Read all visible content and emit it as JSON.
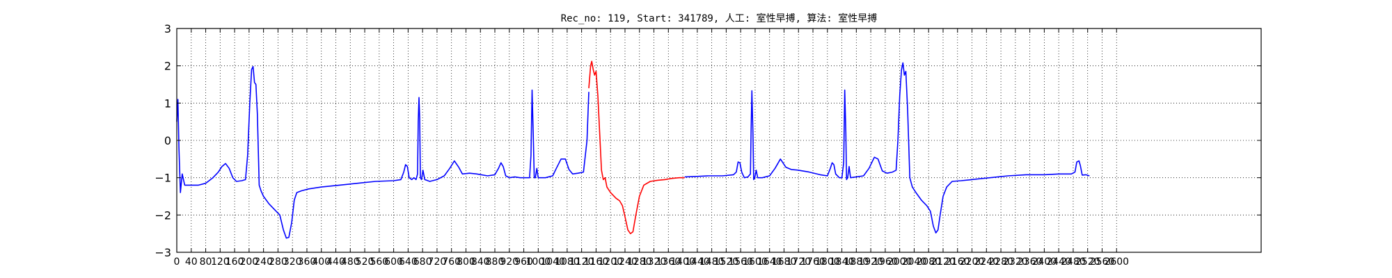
{
  "chart_data": {
    "type": "line",
    "title": "Rec_no: 119, Start: 341789, 人工: 室性早搏, 算法: 室性早搏",
    "xlabel": "",
    "ylabel": "",
    "xlim": [
      0,
      3000
    ],
    "ylim": [
      -3,
      3
    ],
    "grid": true,
    "grid_style": "dotted",
    "yticks": [
      -3,
      -2,
      -1,
      0,
      1,
      2,
      3
    ],
    "ytick_labels": [
      "−3",
      "−2",
      "−1",
      "0",
      "1",
      "2",
      "3"
    ],
    "xticks": [
      0,
      40,
      80,
      120,
      160,
      200,
      240,
      280,
      320,
      360,
      400,
      440,
      480,
      520,
      560,
      600,
      640,
      680,
      720,
      760,
      800,
      840,
      880,
      920,
      960,
      1000,
      1040,
      1080,
      1120,
      1160,
      1200,
      1240,
      1280,
      1320,
      1360,
      1400,
      1440,
      1480,
      1520,
      1560,
      1600,
      1640,
      1680,
      1720,
      1760,
      1800,
      1840,
      1880,
      1920,
      1960,
      2000,
      2040,
      2080,
      2120,
      2160,
      2200,
      2240,
      2280,
      2320,
      2360,
      2400,
      2440,
      2480,
      2520,
      2560,
      2600
    ],
    "series": [
      {
        "color": "#0000ff",
        "points": [
          [
            0,
            0.5
          ],
          [
            3,
            1.1
          ],
          [
            6,
            -0.2
          ],
          [
            10,
            -1.4
          ],
          [
            15,
            -0.9
          ],
          [
            22,
            -1.2
          ],
          [
            40,
            -1.2
          ],
          [
            60,
            -1.2
          ],
          [
            80,
            -1.15
          ],
          [
            100,
            -1.0
          ],
          [
            115,
            -0.85
          ],
          [
            125,
            -0.7
          ],
          [
            135,
            -0.62
          ],
          [
            145,
            -0.75
          ],
          [
            155,
            -1.0
          ],
          [
            165,
            -1.1
          ],
          [
            180,
            -1.08
          ],
          [
            190,
            -1.05
          ],
          [
            196,
            -0.4
          ],
          [
            202,
            1.0
          ],
          [
            207,
            1.9
          ],
          [
            211,
            1.98
          ],
          [
            215,
            1.55
          ],
          [
            219,
            1.5
          ],
          [
            223,
            0.7
          ],
          [
            228,
            -1.2
          ],
          [
            233,
            -1.35
          ],
          [
            240,
            -1.5
          ],
          [
            255,
            -1.7
          ],
          [
            270,
            -1.85
          ],
          [
            285,
            -2.0
          ],
          [
            295,
            -2.4
          ],
          [
            303,
            -2.62
          ],
          [
            310,
            -2.6
          ],
          [
            318,
            -2.2
          ],
          [
            325,
            -1.6
          ],
          [
            332,
            -1.4
          ],
          [
            345,
            -1.35
          ],
          [
            365,
            -1.3
          ],
          [
            400,
            -1.25
          ],
          [
            450,
            -1.2
          ],
          [
            500,
            -1.15
          ],
          [
            550,
            -1.1
          ],
          [
            600,
            -1.08
          ],
          [
            620,
            -1.05
          ],
          [
            628,
            -0.85
          ],
          [
            633,
            -0.65
          ],
          [
            638,
            -0.7
          ],
          [
            643,
            -1.0
          ],
          [
            650,
            -1.05
          ],
          [
            656,
            -1.0
          ],
          [
            662,
            -1.05
          ],
          [
            666,
            -0.9
          ],
          [
            668,
            0.5
          ],
          [
            670,
            1.15
          ],
          [
            672,
            0.6
          ],
          [
            674,
            -1.0
          ],
          [
            677,
            -1.05
          ],
          [
            681,
            -0.8
          ],
          [
            686,
            -1.05
          ],
          [
            700,
            -1.1
          ],
          [
            720,
            -1.05
          ],
          [
            740,
            -0.95
          ],
          [
            755,
            -0.75
          ],
          [
            768,
            -0.55
          ],
          [
            780,
            -0.72
          ],
          [
            790,
            -0.9
          ],
          [
            810,
            -0.88
          ],
          [
            830,
            -0.9
          ],
          [
            860,
            -0.95
          ],
          [
            880,
            -0.92
          ],
          [
            890,
            -0.75
          ],
          [
            897,
            -0.6
          ],
          [
            903,
            -0.7
          ],
          [
            910,
            -0.95
          ],
          [
            920,
            -1.0
          ],
          [
            935,
            -0.98
          ],
          [
            950,
            -1.0
          ],
          [
            976,
            -1.0
          ],
          [
            980,
            -0.4
          ],
          [
            983,
            1.35
          ],
          [
            986,
            0.2
          ],
          [
            989,
            -1.0
          ],
          [
            992,
            -1.0
          ],
          [
            996,
            -0.75
          ],
          [
            1000,
            -1.0
          ],
          [
            1020,
            -1.0
          ],
          [
            1040,
            -0.95
          ],
          [
            1050,
            -0.75
          ],
          [
            1063,
            -0.5
          ],
          [
            1075,
            -0.5
          ],
          [
            1085,
            -0.78
          ],
          [
            1095,
            -0.9
          ],
          [
            1110,
            -0.88
          ],
          [
            1125,
            -0.85
          ],
          [
            1135,
            0.0
          ],
          [
            1140,
            1.3
          ]
        ]
      },
      {
        "color": "#ff0000",
        "points": [
          [
            1140,
            1.4
          ],
          [
            1145,
            2.0
          ],
          [
            1148,
            2.12
          ],
          [
            1152,
            1.9
          ],
          [
            1156,
            1.75
          ],
          [
            1160,
            1.85
          ],
          [
            1165,
            1.2
          ],
          [
            1170,
            0.2
          ],
          [
            1175,
            -0.8
          ],
          [
            1180,
            -1.05
          ],
          [
            1185,
            -1.0
          ],
          [
            1190,
            -1.25
          ],
          [
            1200,
            -1.4
          ],
          [
            1215,
            -1.55
          ],
          [
            1225,
            -1.62
          ],
          [
            1233,
            -1.75
          ],
          [
            1240,
            -2.05
          ],
          [
            1248,
            -2.4
          ],
          [
            1255,
            -2.5
          ],
          [
            1262,
            -2.45
          ],
          [
            1270,
            -2.0
          ],
          [
            1280,
            -1.5
          ],
          [
            1292,
            -1.2
          ],
          [
            1310,
            -1.1
          ],
          [
            1330,
            -1.07
          ],
          [
            1350,
            -1.05
          ],
          [
            1370,
            -1.02
          ],
          [
            1390,
            -1.0
          ],
          [
            1405,
            -1.0
          ]
        ]
      },
      {
        "color": "#0000ff",
        "points": [
          [
            1405,
            -0.98
          ],
          [
            1430,
            -0.97
          ],
          [
            1470,
            -0.95
          ],
          [
            1510,
            -0.95
          ],
          [
            1540,
            -0.92
          ],
          [
            1548,
            -0.85
          ],
          [
            1553,
            -0.58
          ],
          [
            1558,
            -0.6
          ],
          [
            1563,
            -0.85
          ],
          [
            1570,
            -1.0
          ],
          [
            1580,
            -0.98
          ],
          [
            1587,
            -0.9
          ],
          [
            1589,
            0.3
          ],
          [
            1591,
            1.33
          ],
          [
            1594,
            0.2
          ],
          [
            1596,
            -1.05
          ],
          [
            1599,
            -1.0
          ],
          [
            1603,
            -0.8
          ],
          [
            1607,
            -1.0
          ],
          [
            1620,
            -1.0
          ],
          [
            1640,
            -0.95
          ],
          [
            1655,
            -0.75
          ],
          [
            1670,
            -0.5
          ],
          [
            1685,
            -0.72
          ],
          [
            1700,
            -0.78
          ],
          [
            1720,
            -0.8
          ],
          [
            1750,
            -0.85
          ],
          [
            1780,
            -0.92
          ],
          [
            1800,
            -0.95
          ],
          [
            1808,
            -0.75
          ],
          [
            1813,
            -0.6
          ],
          [
            1818,
            -0.65
          ],
          [
            1823,
            -0.9
          ],
          [
            1833,
            -1.0
          ],
          [
            1840,
            -1.0
          ],
          [
            1845,
            -0.6
          ],
          [
            1848,
            1.35
          ],
          [
            1851,
            0.2
          ],
          [
            1853,
            -1.05
          ],
          [
            1856,
            -1.0
          ],
          [
            1860,
            -0.7
          ],
          [
            1864,
            -1.0
          ],
          [
            1880,
            -0.98
          ],
          [
            1900,
            -0.95
          ],
          [
            1915,
            -0.75
          ],
          [
            1930,
            -0.45
          ],
          [
            1940,
            -0.5
          ],
          [
            1952,
            -0.82
          ],
          [
            1965,
            -0.88
          ],
          [
            1980,
            -0.85
          ],
          [
            1990,
            -0.8
          ],
          [
            1995,
            0.0
          ],
          [
            2000,
            1.2
          ],
          [
            2005,
            1.9
          ],
          [
            2009,
            2.08
          ],
          [
            2013,
            1.75
          ],
          [
            2017,
            1.85
          ],
          [
            2022,
            0.8
          ],
          [
            2028,
            -1.0
          ],
          [
            2035,
            -1.25
          ],
          [
            2045,
            -1.4
          ],
          [
            2060,
            -1.6
          ],
          [
            2075,
            -1.75
          ],
          [
            2085,
            -1.9
          ],
          [
            2093,
            -2.3
          ],
          [
            2100,
            -2.48
          ],
          [
            2106,
            -2.4
          ],
          [
            2112,
            -2.0
          ],
          [
            2120,
            -1.5
          ],
          [
            2130,
            -1.25
          ],
          [
            2145,
            -1.1
          ],
          [
            2170,
            -1.08
          ],
          [
            2200,
            -1.05
          ],
          [
            2250,
            -1.0
          ],
          [
            2300,
            -0.95
          ],
          [
            2350,
            -0.92
          ],
          [
            2400,
            -0.92
          ],
          [
            2440,
            -0.9
          ],
          [
            2475,
            -0.9
          ],
          [
            2485,
            -0.85
          ],
          [
            2490,
            -0.58
          ],
          [
            2496,
            -0.55
          ],
          [
            2500,
            -0.68
          ],
          [
            2505,
            -0.93
          ],
          [
            2515,
            -0.92
          ],
          [
            2525,
            -0.95
          ]
        ]
      }
    ]
  }
}
